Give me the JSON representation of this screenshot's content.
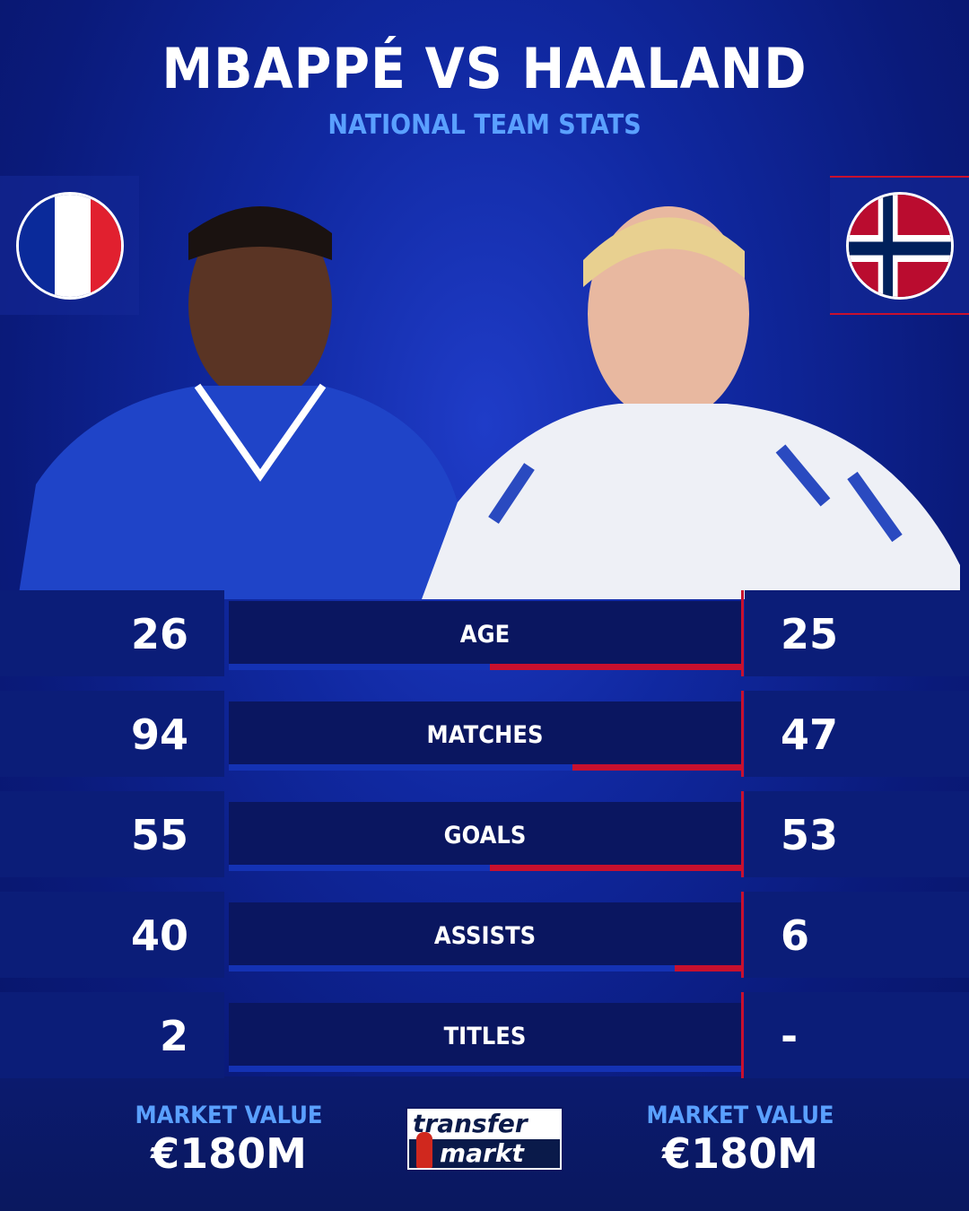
{
  "header": {
    "title": "MBAPPÉ VS HAALAND",
    "subtitle": "NATIONAL TEAM STATS"
  },
  "players": {
    "left": {
      "name": "Mbappé",
      "flag": "france-flag",
      "market_value_label": "MARKET VALUE",
      "market_value": "€180M"
    },
    "right": {
      "name": "Haaland",
      "flag": "norway-flag",
      "market_value_label": "MARKET VALUE",
      "market_value": "€180M"
    }
  },
  "stats": [
    {
      "label": "AGE",
      "left": "26",
      "right": "25",
      "left_share": 0.51
    },
    {
      "label": "MATCHES",
      "left": "94",
      "right": "47",
      "left_share": 0.67
    },
    {
      "label": "GOALS",
      "left": "55",
      "right": "53",
      "left_share": 0.51
    },
    {
      "label": "ASSISTS",
      "left": "40",
      "right": "6",
      "left_share": 0.87
    },
    {
      "label": "TITLES",
      "left": "2",
      "right": "-",
      "left_share": 1.0
    }
  ],
  "logo": {
    "line1": "transfer",
    "line2": "markt"
  },
  "colors": {
    "background": "#1028a0",
    "accent_blue": "#5aa0ff",
    "left_bar": "#1432b4",
    "right_bar": "#c8102e"
  }
}
